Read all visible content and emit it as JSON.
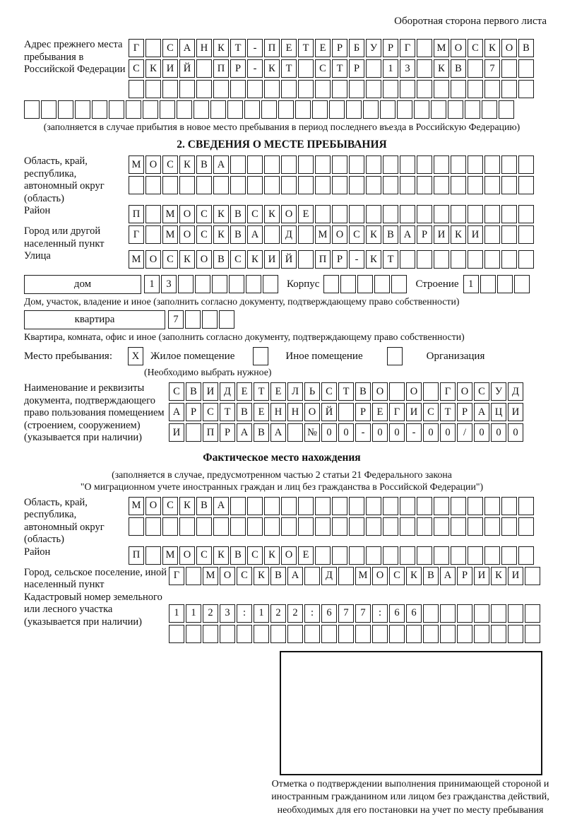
{
  "page": {
    "side_note": "Оборотная сторона первого листа"
  },
  "prev_address": {
    "label": "Адрес прежнего места пребывания в Российской Федерации",
    "row1": {
      "t": "Г САНКТ-ПЕТЕРБУРГ МОСКОВ",
      "n": 24
    },
    "row2": {
      "t": "СКИЙ ПР-КТ СТР 13 КВ 7",
      "n": 24
    },
    "row3": {
      "t": "",
      "n": 24
    },
    "row4": {
      "t": "",
      "n": 29
    },
    "note": "(заполняется в случае прибытия в новое место пребывания в период последнего въезда в Российскую Федерацию)"
  },
  "stay_info": {
    "title": "2. СВЕДЕНИЯ О МЕСТЕ ПРЕБЫВАНИЯ",
    "region": {
      "label": "Область, край, республика, автономный округ (область)",
      "row1": {
        "t": "МОСКВА",
        "n": 24
      },
      "row2": {
        "t": "",
        "n": 24
      }
    },
    "district": {
      "label": "Район",
      "row": {
        "t": "П МОСКВСКОЕ",
        "n": 24
      }
    },
    "city": {
      "label": "Город или другой населенный пункт",
      "row": {
        "t": "Г МОСКВА Д МОСКВАРИКИ",
        "n": 24
      }
    },
    "street": {
      "label": "Улица",
      "row": {
        "t": "МОСКОВСКИЙ ПР-КТ",
        "n": 24
      }
    },
    "house": {
      "type_label": "дом",
      "number": {
        "t": "13",
        "n": 8
      },
      "korpus_label": "Корпус",
      "korpus": {
        "t": "",
        "n": 5
      },
      "stroenie_label": "Строение",
      "stroenie": {
        "t": "1",
        "n": 4
      },
      "note": "Дом, участок, владение и иное (заполнить согласно документу, подтверждающему право собственности)"
    },
    "apartment": {
      "type_label": "квартира",
      "number": {
        "t": "7",
        "n": 4
      },
      "note": "Квартира, комната, офис и иное (заполнить согласно документу, подтверждающему право собственности)"
    },
    "place_type": {
      "label": "Место пребывания:",
      "checkbox1": {
        "t": "X",
        "n": 1
      },
      "option1": "Жилое помещение",
      "checkbox2": {
        "t": "",
        "n": 1
      },
      "option2": "Иное помещение",
      "checkbox3": {
        "t": "",
        "n": 1
      },
      "option3": "Организация",
      "note": "(Необходимо выбрать нужное)"
    },
    "document": {
      "label": "Наименование и реквизиты документа, подтверждающего право пользования помещением (строением, сооружением) (указывается при наличии)",
      "row1": {
        "t": "СВИДЕТЕЛЬСТВО О ГОСУД",
        "n": 21
      },
      "row2": {
        "t": "АРСТВЕННОЙ РЕГИСТРАЦИ",
        "n": 21
      },
      "row3": {
        "t": "И ПРАВА №00-00-00/000",
        "n": 21
      }
    }
  },
  "actual_location": {
    "title": "Фактическое место нахождения",
    "note1": "(заполняется в случае, предусмотренном частью 2 статьи 21 Федерального закона",
    "note2": "\"О миграционном учете иностранных граждан и лиц без гражданства в Российской Федерации\")",
    "region": {
      "label": "Область, край, республика, автономный округ (область)",
      "row1": {
        "t": "МОСКВА",
        "n": 24
      },
      "row2": {
        "t": "",
        "n": 24
      }
    },
    "district": {
      "label": "Район",
      "row": {
        "t": "П МОСКВСКОЕ",
        "n": 24
      }
    },
    "city": {
      "label": "Город, сельское поселение, иной населенный пункт",
      "row": {
        "t": "Г МОСКВА Д МОСКВАРИКИ",
        "n": 22
      }
    },
    "cadastre": {
      "label": "Кадастровый номер земельного или лесного участка (указывается при наличии)",
      "row1": {
        "t": "1123:122:677:66",
        "n": 22
      },
      "row2": {
        "t": "",
        "n": 22
      }
    },
    "stamp_note": "Отметка о подтверждении выполнения принимающей стороной и иностранным гражданином или лицом без гражданства действий, необходимых для его постановки на учет по месту пребывания"
  }
}
